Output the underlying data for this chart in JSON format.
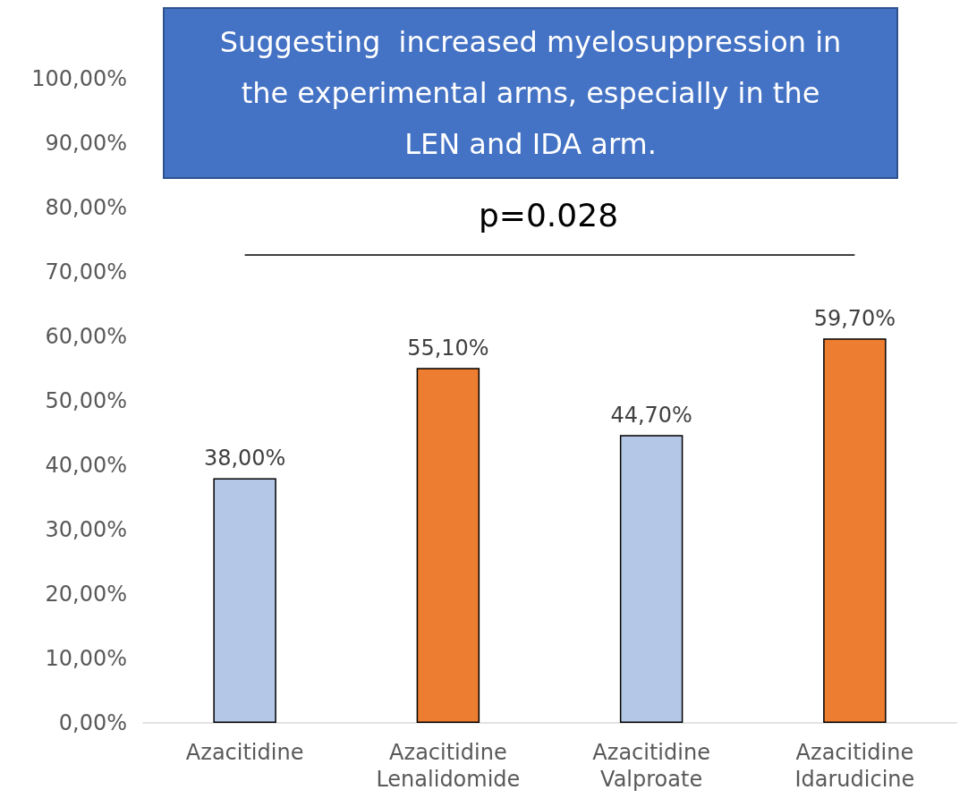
{
  "chart_data": {
    "type": "bar",
    "categories": [
      "Azacitidine",
      "Azacitidine\nLenalidomide",
      "Azacitidine\nValproate",
      "Azacitidine\nIdarudicine"
    ],
    "values": [
      38.0,
      55.1,
      44.7,
      59.7
    ],
    "colors": [
      "#b4c7e7",
      "#ed7d31",
      "#b4c7e7",
      "#ed7d31"
    ],
    "value_labels": [
      "38,00%",
      "55,10%",
      "44,70%",
      "59,70%"
    ],
    "ylim": [
      0,
      100
    ],
    "yticks": [
      {
        "value": 0,
        "label": "0,00%"
      },
      {
        "value": 10,
        "label": "10,00%"
      },
      {
        "value": 20,
        "label": "20,00%"
      },
      {
        "value": 30,
        "label": "30,00%"
      },
      {
        "value": 40,
        "label": "40,00%"
      },
      {
        "value": 50,
        "label": "50,00%"
      },
      {
        "value": 60,
        "label": "60,00%"
      },
      {
        "value": 70,
        "label": "70,00%"
      },
      {
        "value": 80,
        "label": "80,00%"
      },
      {
        "value": 90,
        "label": "90,00%"
      },
      {
        "value": 100,
        "label": "100,00%"
      }
    ],
    "grid": false,
    "ref_lines": [
      {
        "axis": "y",
        "value": 72.7,
        "color": "#000000"
      }
    ],
    "annotations": [
      "Suggesting  increased myelosuppression in the experimental arms, especially in the LEN and IDA arm.",
      "p=0.028"
    ]
  }
}
